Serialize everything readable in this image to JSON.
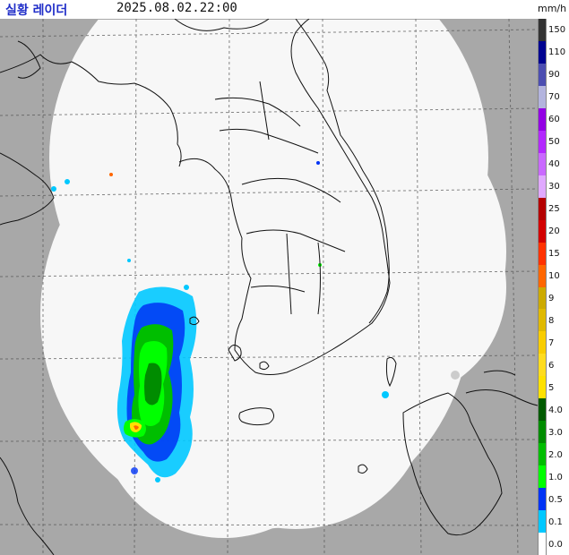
{
  "header": {
    "title": "실황 레이더",
    "timestamp": "2025.08.02.22:00",
    "unit": "mm/h"
  },
  "legend": {
    "items": [
      {
        "label": "150",
        "color": "#333333"
      },
      {
        "label": "110",
        "color": "#000390"
      },
      {
        "label": "90",
        "color": "#4c4eb1"
      },
      {
        "label": "70",
        "color": "#b3b4de"
      },
      {
        "label": "60",
        "color": "#9300e4"
      },
      {
        "label": "50",
        "color": "#b329ff"
      },
      {
        "label": "40",
        "color": "#c969ff"
      },
      {
        "label": "30",
        "color": "#e0a9ff"
      },
      {
        "label": "25",
        "color": "#b40000"
      },
      {
        "label": "20",
        "color": "#d20000"
      },
      {
        "label": "15",
        "color": "#ff3200"
      },
      {
        "label": "10",
        "color": "#ff6600"
      },
      {
        "label": "9",
        "color": "#ccaa00"
      },
      {
        "label": "8",
        "color": "#e0b900"
      },
      {
        "label": "7",
        "color": "#f9cd00"
      },
      {
        "label": "6",
        "color": "#ffdc1f"
      },
      {
        "label": "5",
        "color": "#ffe100"
      },
      {
        "label": "4.0",
        "color": "#005a00"
      },
      {
        "label": "3.0",
        "color": "#008c00"
      },
      {
        "label": "2.0",
        "color": "#00be00"
      },
      {
        "label": "1.0",
        "color": "#00ff00"
      },
      {
        "label": "0.5",
        "color": "#0033f5"
      },
      {
        "label": "0.1",
        "color": "#00c8ff"
      },
      {
        "label": "0.0",
        "color": "#ffffff"
      }
    ]
  },
  "map": {
    "outside_color": "#a8a8a8",
    "coverage_color": "#f7f7f7",
    "grid_color": "#555555",
    "coast_color": "#111111"
  }
}
